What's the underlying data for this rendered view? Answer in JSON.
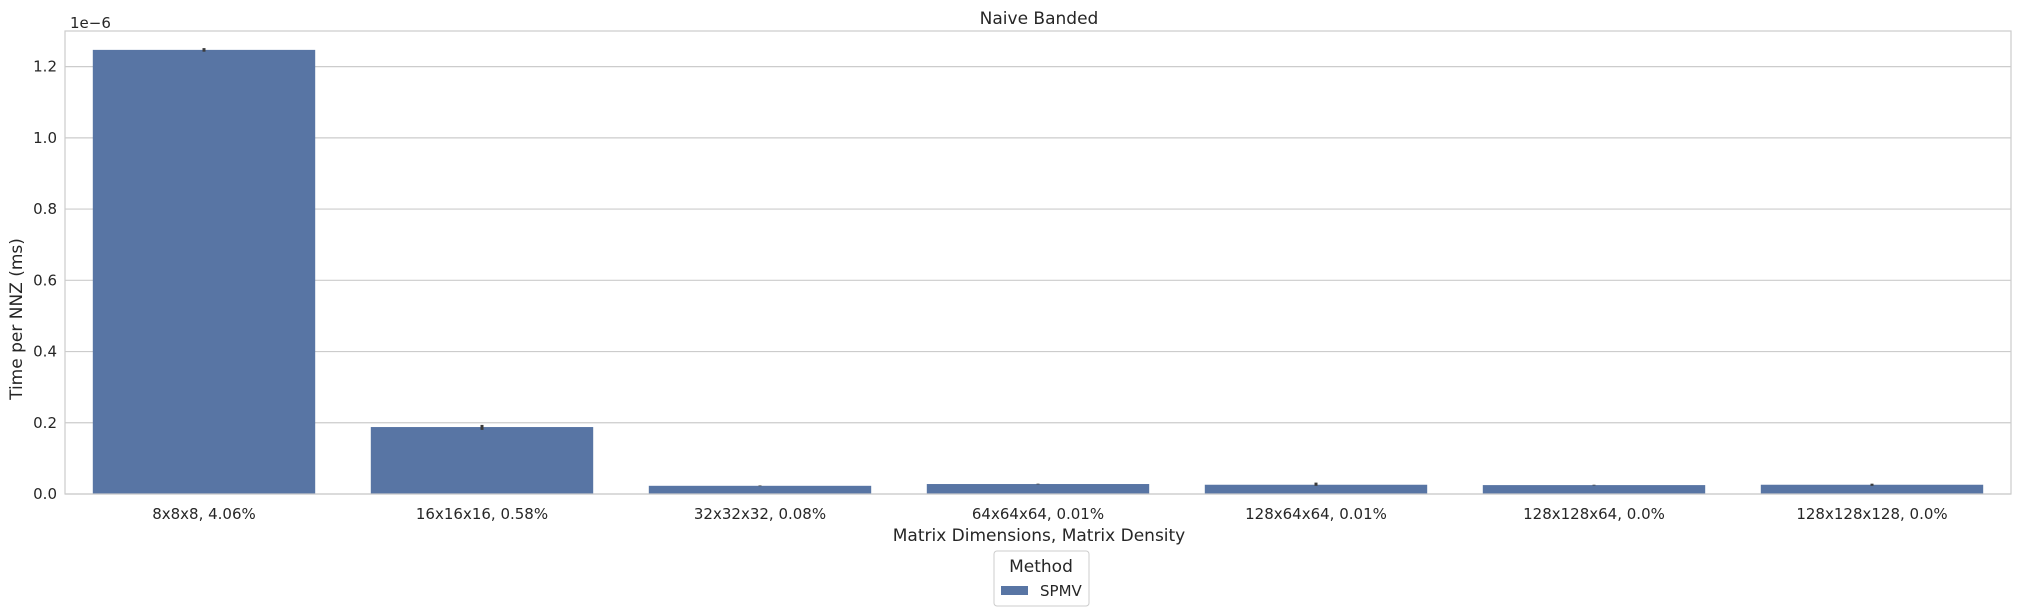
{
  "chart_data": {
    "type": "bar",
    "title": "Naive Banded",
    "xlabel": "Matrix Dimensions, Matrix Density",
    "ylabel": "Time per NNZ (ms)",
    "y_offset_label": "1e−6",
    "ylim": [
      0,
      1.3e-06
    ],
    "yticks": [
      0,
      2e-07,
      4e-07,
      6e-07,
      8e-07,
      1e-06,
      1.2e-06
    ],
    "ytick_labels": [
      "0.0",
      "0.2",
      "0.4",
      "0.6",
      "0.8",
      "1.0",
      "1.2"
    ],
    "categories": [
      "8x8x8, 4.06%",
      "16x16x16, 0.58%",
      "32x32x32, 0.08%",
      "64x64x64, 0.01%",
      "128x64x64, 0.01%",
      "128x128x64, 0.0%",
      "128x128x128, 0.0%"
    ],
    "series": [
      {
        "name": "SPMV",
        "color": "#5875a4",
        "values": [
          1.247e-06,
          1.88e-07,
          2.3e-08,
          2.8e-08,
          2.6e-08,
          2.5e-08,
          2.6e-08
        ],
        "error_low": [
          1.242e-06,
          1.8e-07,
          2.2e-08,
          2.7e-08,
          2.3e-08,
          2.4e-08,
          2.3e-08
        ],
        "error_high": [
          1.252e-06,
          1.94e-07,
          2.4e-08,
          2.9e-08,
          3.2e-08,
          2.6e-08,
          2.9e-08
        ]
      }
    ],
    "grid": true,
    "legend": {
      "title": "Method",
      "placement": "bottom-center-outside"
    },
    "colors": {
      "grid": "#cccccc",
      "spine": "#cccccc",
      "errorbar": "#3b3b3b"
    }
  }
}
